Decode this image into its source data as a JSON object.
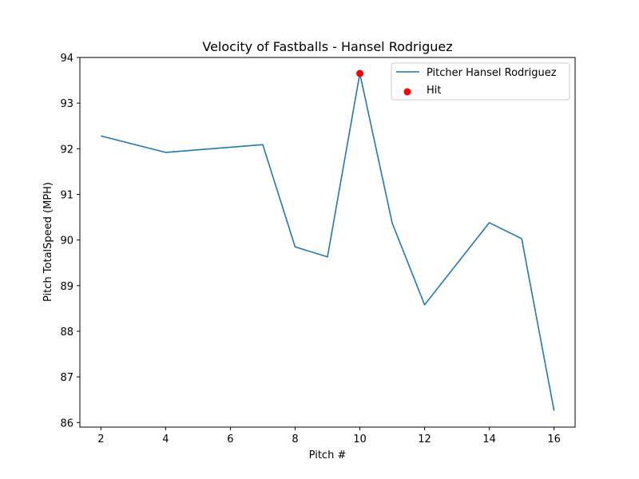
{
  "chart_data": {
    "type": "line",
    "title": "Velocity of Fastballs - Hansel Rodriguez",
    "xlabel": "Pitch #",
    "ylabel": "Pitch TotalSpeed (MPH)",
    "xlim": [
      1.35,
      16.65
    ],
    "ylim": [
      85.9,
      94.0
    ],
    "xticks": [
      2,
      4,
      6,
      8,
      10,
      12,
      14,
      16
    ],
    "yticks": [
      86,
      87,
      88,
      89,
      90,
      91,
      92,
      93,
      94
    ],
    "grid": false,
    "legend_position": "top-right",
    "series": [
      {
        "name": "Pitcher Hansel Rodriguez",
        "kind": "line",
        "color": "#1f77b4",
        "x": [
          2,
          4,
          7,
          8,
          9,
          10,
          11,
          12,
          14,
          15,
          16
        ],
        "y": [
          92.28,
          91.92,
          92.09,
          89.85,
          89.63,
          93.65,
          90.37,
          88.58,
          90.38,
          90.03,
          86.26
        ]
      },
      {
        "name": "Hit",
        "kind": "scatter",
        "color": "#ff0000",
        "x": [
          10
        ],
        "y": [
          93.65
        ]
      }
    ]
  }
}
